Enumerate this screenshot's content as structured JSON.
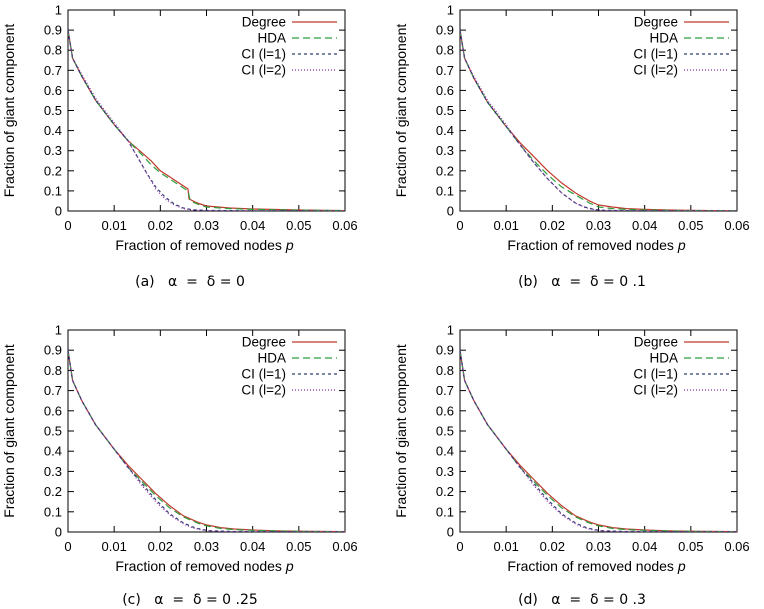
{
  "chart_data": [
    {
      "type": "line",
      "caption": "(a)   α  =  δ = 0",
      "xlabel": "Fraction of removed nodes ",
      "xlabel_var": "p",
      "ylabel": "Fraction of giant component",
      "xlim": [
        0,
        0.06
      ],
      "ylim": [
        0,
        1
      ],
      "xticks": [
        "0",
        "0.01",
        "0.02",
        "0.03",
        "0.04",
        "0.05",
        "0.06"
      ],
      "yticks": [
        "0",
        "0.1",
        "0.2",
        "0.3",
        "0.4",
        "0.5",
        "0.6",
        "0.7",
        "0.8",
        "0.9",
        "1"
      ],
      "legend_position": "top-right",
      "series": [
        {
          "name": "Degree",
          "color": "#c0392b",
          "dash": "solid",
          "x": [
            0,
            0.001,
            0.003,
            0.006,
            0.01,
            0.013,
            0.016,
            0.018,
            0.02,
            0.022,
            0.024,
            0.026,
            0.0262,
            0.028,
            0.03,
            0.035,
            0.04,
            0.05,
            0.06
          ],
          "y": [
            0.9,
            0.76,
            0.67,
            0.55,
            0.43,
            0.35,
            0.29,
            0.25,
            0.2,
            0.17,
            0.14,
            0.11,
            0.06,
            0.04,
            0.025,
            0.015,
            0.01,
            0.005,
            0.002
          ]
        },
        {
          "name": "HDA",
          "color": "#2e9e3e",
          "dash": "7,4",
          "x": [
            0,
            0.001,
            0.003,
            0.006,
            0.01,
            0.013,
            0.016,
            0.018,
            0.02,
            0.022,
            0.024,
            0.026,
            0.0265,
            0.028,
            0.03,
            0.035,
            0.04,
            0.05,
            0.06
          ],
          "y": [
            0.9,
            0.76,
            0.67,
            0.55,
            0.43,
            0.35,
            0.28,
            0.23,
            0.19,
            0.16,
            0.13,
            0.1,
            0.05,
            0.035,
            0.02,
            0.012,
            0.008,
            0.004,
            0.002
          ]
        },
        {
          "name": "CI (l=1)",
          "color": "#2c3e6e",
          "dash": "3,3",
          "x": [
            0,
            0.001,
            0.003,
            0.006,
            0.01,
            0.013,
            0.015,
            0.017,
            0.019,
            0.021,
            0.023,
            0.025,
            0.027,
            0.03,
            0.035,
            0.04,
            0.05,
            0.06
          ],
          "y": [
            0.9,
            0.76,
            0.67,
            0.55,
            0.43,
            0.35,
            0.27,
            0.19,
            0.12,
            0.07,
            0.035,
            0.015,
            0.006,
            0.003,
            0.002,
            0.001,
            0.0005,
            0.0002
          ]
        },
        {
          "name": "CI (l=2)",
          "color": "#8e2fa8",
          "dash": "1,2",
          "x": [
            0,
            0.001,
            0.003,
            0.006,
            0.01,
            0.013,
            0.015,
            0.017,
            0.019,
            0.021,
            0.023,
            0.025,
            0.027,
            0.03,
            0.035,
            0.04,
            0.05,
            0.06
          ],
          "y": [
            0.9,
            0.76,
            0.68,
            0.56,
            0.44,
            0.35,
            0.27,
            0.19,
            0.11,
            0.06,
            0.03,
            0.012,
            0.005,
            0.002,
            0.001,
            0.0008,
            0.0004,
            0.0002
          ]
        }
      ]
    },
    {
      "type": "line",
      "caption": "(b)   α  =  δ = 0 .1",
      "xlabel": "Fraction of removed nodes ",
      "xlabel_var": "p",
      "ylabel": "Fraction of giant component",
      "xlim": [
        0,
        0.06
      ],
      "ylim": [
        0,
        1
      ],
      "xticks": [
        "0",
        "0.01",
        "0.02",
        "0.03",
        "0.04",
        "0.05",
        "0.06"
      ],
      "yticks": [
        "0",
        "0.1",
        "0.2",
        "0.3",
        "0.4",
        "0.5",
        "0.6",
        "0.7",
        "0.8",
        "0.9",
        "1"
      ],
      "legend_position": "top-right",
      "series": [
        {
          "name": "Degree",
          "color": "#c0392b",
          "dash": "solid",
          "x": [
            0,
            0.001,
            0.003,
            0.006,
            0.01,
            0.013,
            0.016,
            0.019,
            0.022,
            0.025,
            0.028,
            0.03,
            0.033,
            0.036,
            0.04,
            0.045,
            0.05,
            0.06
          ],
          "y": [
            0.9,
            0.76,
            0.66,
            0.54,
            0.42,
            0.34,
            0.27,
            0.2,
            0.14,
            0.09,
            0.05,
            0.03,
            0.02,
            0.012,
            0.008,
            0.005,
            0.003,
            0.001
          ]
        },
        {
          "name": "HDA",
          "color": "#2e9e3e",
          "dash": "7,4",
          "x": [
            0,
            0.001,
            0.003,
            0.006,
            0.01,
            0.013,
            0.016,
            0.019,
            0.022,
            0.025,
            0.028,
            0.03,
            0.033,
            0.036,
            0.04,
            0.045,
            0.05,
            0.06
          ],
          "y": [
            0.9,
            0.76,
            0.66,
            0.54,
            0.42,
            0.33,
            0.25,
            0.18,
            0.12,
            0.08,
            0.04,
            0.02,
            0.012,
            0.008,
            0.005,
            0.003,
            0.002,
            0.001
          ]
        },
        {
          "name": "CI (l=1)",
          "color": "#2c3e6e",
          "dash": "3,3",
          "x": [
            0,
            0.001,
            0.003,
            0.006,
            0.01,
            0.013,
            0.016,
            0.019,
            0.022,
            0.025,
            0.027,
            0.029,
            0.031,
            0.035,
            0.04,
            0.05,
            0.06
          ],
          "y": [
            0.9,
            0.76,
            0.66,
            0.54,
            0.42,
            0.33,
            0.24,
            0.16,
            0.09,
            0.04,
            0.02,
            0.008,
            0.004,
            0.002,
            0.001,
            0.0005,
            0.0002
          ]
        },
        {
          "name": "CI (l=2)",
          "color": "#8e2fa8",
          "dash": "1,2",
          "x": [
            0,
            0.001,
            0.003,
            0.006,
            0.01,
            0.013,
            0.016,
            0.019,
            0.022,
            0.025,
            0.027,
            0.029,
            0.031,
            0.035,
            0.04,
            0.05,
            0.06
          ],
          "y": [
            0.9,
            0.76,
            0.67,
            0.55,
            0.43,
            0.33,
            0.24,
            0.16,
            0.09,
            0.04,
            0.018,
            0.007,
            0.003,
            0.0015,
            0.001,
            0.0005,
            0.0002
          ]
        }
      ]
    },
    {
      "type": "line",
      "caption": "(c)   α  =  δ = 0 .25",
      "xlabel": "Fraction of removed nodes ",
      "xlabel_var": "p",
      "ylabel": "Fraction of giant component",
      "xlim": [
        0,
        0.06
      ],
      "ylim": [
        0,
        1
      ],
      "xticks": [
        "0",
        "0.01",
        "0.02",
        "0.03",
        "0.04",
        "0.05",
        "0.06"
      ],
      "yticks": [
        "0",
        "0.1",
        "0.2",
        "0.3",
        "0.4",
        "0.5",
        "0.6",
        "0.7",
        "0.8",
        "0.9",
        "1"
      ],
      "legend_position": "top-right",
      "series": [
        {
          "name": "Degree",
          "color": "#c0392b",
          "dash": "solid",
          "x": [
            0,
            0.001,
            0.003,
            0.006,
            0.01,
            0.013,
            0.016,
            0.019,
            0.022,
            0.025,
            0.028,
            0.03,
            0.033,
            0.036,
            0.04,
            0.045,
            0.05,
            0.06
          ],
          "y": [
            0.9,
            0.75,
            0.65,
            0.53,
            0.41,
            0.33,
            0.26,
            0.19,
            0.13,
            0.08,
            0.05,
            0.035,
            0.022,
            0.015,
            0.01,
            0.006,
            0.004,
            0.002
          ]
        },
        {
          "name": "HDA",
          "color": "#2e9e3e",
          "dash": "7,4",
          "x": [
            0,
            0.001,
            0.003,
            0.006,
            0.01,
            0.013,
            0.016,
            0.019,
            0.022,
            0.025,
            0.028,
            0.03,
            0.033,
            0.036,
            0.04,
            0.045,
            0.05,
            0.06
          ],
          "y": [
            0.9,
            0.75,
            0.65,
            0.53,
            0.41,
            0.32,
            0.25,
            0.18,
            0.12,
            0.075,
            0.045,
            0.03,
            0.018,
            0.012,
            0.008,
            0.005,
            0.003,
            0.001
          ]
        },
        {
          "name": "CI (l=1)",
          "color": "#2c3e6e",
          "dash": "3,3",
          "x": [
            0,
            0.001,
            0.003,
            0.006,
            0.01,
            0.013,
            0.016,
            0.019,
            0.022,
            0.025,
            0.027,
            0.029,
            0.031,
            0.035,
            0.04,
            0.05,
            0.06
          ],
          "y": [
            0.9,
            0.75,
            0.65,
            0.53,
            0.41,
            0.32,
            0.24,
            0.16,
            0.09,
            0.045,
            0.025,
            0.012,
            0.006,
            0.003,
            0.002,
            0.001,
            0.0005
          ]
        },
        {
          "name": "CI (l=2)",
          "color": "#8e2fa8",
          "dash": "1,2",
          "x": [
            0,
            0.001,
            0.003,
            0.006,
            0.01,
            0.013,
            0.016,
            0.019,
            0.022,
            0.025,
            0.027,
            0.029,
            0.031,
            0.035,
            0.04,
            0.05,
            0.06
          ],
          "y": [
            0.9,
            0.75,
            0.65,
            0.53,
            0.41,
            0.32,
            0.23,
            0.15,
            0.085,
            0.04,
            0.02,
            0.01,
            0.005,
            0.002,
            0.001,
            0.0005,
            0.0002
          ]
        }
      ]
    },
    {
      "type": "line",
      "caption": "(d)   α  =  δ = 0 .3",
      "xlabel": "Fraction of removed nodes ",
      "xlabel_var": "p",
      "ylabel": "Fraction of giant component",
      "xlim": [
        0,
        0.06
      ],
      "ylim": [
        0,
        1
      ],
      "xticks": [
        "0",
        "0.01",
        "0.02",
        "0.03",
        "0.04",
        "0.05",
        "0.06"
      ],
      "yticks": [
        "0",
        "0.1",
        "0.2",
        "0.3",
        "0.4",
        "0.5",
        "0.6",
        "0.7",
        "0.8",
        "0.9",
        "1"
      ],
      "legend_position": "top-right",
      "series": [
        {
          "name": "Degree",
          "color": "#c0392b",
          "dash": "solid",
          "x": [
            0,
            0.001,
            0.003,
            0.006,
            0.01,
            0.013,
            0.016,
            0.019,
            0.022,
            0.025,
            0.028,
            0.03,
            0.033,
            0.036,
            0.04,
            0.045,
            0.05,
            0.06
          ],
          "y": [
            0.9,
            0.75,
            0.65,
            0.53,
            0.41,
            0.33,
            0.26,
            0.19,
            0.13,
            0.08,
            0.05,
            0.035,
            0.022,
            0.015,
            0.01,
            0.006,
            0.004,
            0.002
          ]
        },
        {
          "name": "HDA",
          "color": "#2e9e3e",
          "dash": "7,4",
          "x": [
            0,
            0.001,
            0.003,
            0.006,
            0.01,
            0.013,
            0.016,
            0.019,
            0.022,
            0.025,
            0.028,
            0.03,
            0.033,
            0.036,
            0.04,
            0.045,
            0.05,
            0.06
          ],
          "y": [
            0.9,
            0.75,
            0.65,
            0.53,
            0.41,
            0.32,
            0.25,
            0.18,
            0.12,
            0.075,
            0.045,
            0.03,
            0.018,
            0.012,
            0.008,
            0.005,
            0.003,
            0.001
          ]
        },
        {
          "name": "CI (l=1)",
          "color": "#2c3e6e",
          "dash": "3,3",
          "x": [
            0,
            0.001,
            0.003,
            0.006,
            0.01,
            0.013,
            0.016,
            0.019,
            0.022,
            0.025,
            0.027,
            0.029,
            0.031,
            0.035,
            0.04,
            0.05,
            0.06
          ],
          "y": [
            0.9,
            0.75,
            0.65,
            0.53,
            0.41,
            0.32,
            0.24,
            0.16,
            0.09,
            0.045,
            0.025,
            0.012,
            0.006,
            0.003,
            0.002,
            0.001,
            0.0005
          ]
        },
        {
          "name": "CI (l=2)",
          "color": "#8e2fa8",
          "dash": "1,2",
          "x": [
            0,
            0.001,
            0.003,
            0.006,
            0.01,
            0.013,
            0.016,
            0.019,
            0.022,
            0.025,
            0.027,
            0.029,
            0.031,
            0.035,
            0.04,
            0.05,
            0.06
          ],
          "y": [
            0.9,
            0.75,
            0.65,
            0.53,
            0.41,
            0.32,
            0.23,
            0.15,
            0.085,
            0.04,
            0.02,
            0.01,
            0.005,
            0.002,
            0.001,
            0.0005,
            0.0002
          ]
        }
      ]
    }
  ]
}
